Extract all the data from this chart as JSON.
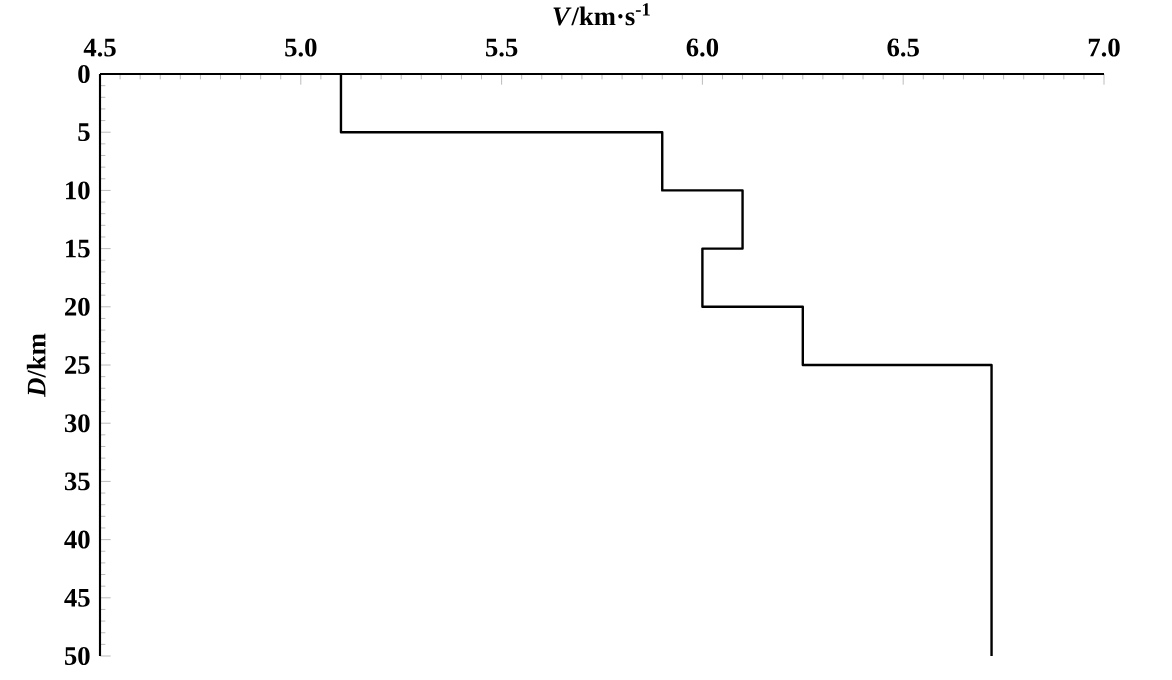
{
  "chart_data": {
    "type": "line",
    "xlabel": "*V*/km·s$^{-1}$",
    "ylabel": "*D*/km",
    "x": [
      5.1,
      5.1,
      5.9,
      5.9,
      6.1,
      6.1,
      6.0,
      6.0,
      6.25,
      6.25,
      6.72,
      6.72
    ],
    "values": [
      0,
      5,
      5,
      10,
      10,
      15,
      15,
      20,
      20,
      25,
      25,
      50
    ],
    "color": "#000000",
    "marker": "none",
    "line_style": "solid",
    "xlim": [
      4.5,
      7.0
    ],
    "xticks": [
      4.5,
      {
        "value": 5.0,
        "label": "5.0"
      },
      5.5,
      {
        "value": 6.0,
        "label": "6.0"
      },
      6.5,
      {
        "value": 7.0,
        "label": "7.0"
      }
    ],
    "ylim": [
      50,
      0
    ],
    "yticks": [
      0,
      5,
      10,
      15,
      20,
      25,
      30,
      35,
      40,
      45,
      50
    ]
  }
}
